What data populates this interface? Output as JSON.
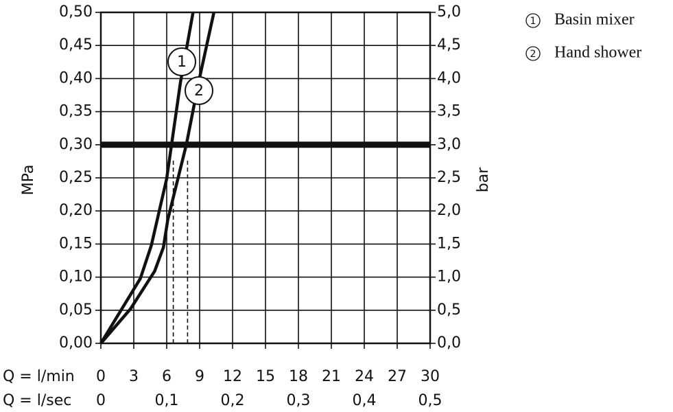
{
  "chart_data": {
    "type": "line",
    "ylabel": "MPa",
    "y2label": "bar",
    "xlabel": "Q = l/min",
    "x2label": "Q = l/sec",
    "xlim": [
      0,
      30
    ],
    "xticks": [
      0,
      3,
      6,
      9,
      12,
      15,
      18,
      21,
      24,
      27,
      30
    ],
    "x2lim": [
      0,
      0.5
    ],
    "x2ticks": [
      0,
      {
        "value": 0.1,
        "label": "0,1"
      },
      {
        "value": 0.2,
        "label": "0,2"
      },
      {
        "value": 0.3,
        "label": "0,3"
      },
      {
        "value": 0.4,
        "label": "0,4"
      },
      {
        "value": 0.5,
        "label": "0,5"
      }
    ],
    "ylim": [
      0,
      0.5
    ],
    "yticks": [
      {
        "value": 0,
        "label": "0,00"
      },
      {
        "value": 0.05,
        "label": "0,05"
      },
      {
        "value": 0.1,
        "label": "0,10"
      },
      {
        "value": 0.15,
        "label": "0,15"
      },
      {
        "value": 0.2,
        "label": "0,20"
      },
      {
        "value": 0.25,
        "label": "0,25"
      },
      {
        "value": 0.3,
        "label": "0,30"
      },
      {
        "value": 0.35,
        "label": "0,35"
      },
      {
        "value": 0.4,
        "label": "0,40"
      },
      {
        "value": 0.45,
        "label": "0,45"
      },
      {
        "value": 0.5,
        "label": "0,50"
      }
    ],
    "y2lim": [
      0,
      5
    ],
    "y2ticks": [
      {
        "value": 0,
        "label": "0,0"
      },
      {
        "value": 0.5,
        "label": "0,5"
      },
      {
        "value": 1,
        "label": "1,0"
      },
      {
        "value": 1.5,
        "label": "1,5"
      },
      {
        "value": 2,
        "label": "2,0"
      },
      {
        "value": 2.5,
        "label": "2,5"
      },
      {
        "value": 3,
        "label": "3,0"
      },
      {
        "value": 3.5,
        "label": "3,5"
      },
      {
        "value": 4,
        "label": "4,0"
      },
      {
        "value": 4.5,
        "label": "4,5"
      },
      {
        "value": 5,
        "label": "5,0"
      }
    ],
    "grid": true,
    "reference_line": 0.3,
    "dashed_x": [
      6.6,
      7.9
    ],
    "series": [
      {
        "name": "Basin mixer",
        "label": "1",
        "color": "#111111",
        "x": [
          0,
          3.6,
          4.6,
          6,
          7.25,
          8.4
        ],
        "values": [
          0,
          0.098,
          0.148,
          0.249,
          0.394,
          0.5
        ]
      },
      {
        "name": "Hand shower",
        "label": "2",
        "color": "#111111",
        "x": [
          0,
          2.7,
          4.9,
          5.7,
          6.1,
          7.8,
          8.9,
          10.3
        ],
        "values": [
          0,
          0.052,
          0.109,
          0.145,
          0.187,
          0.301,
          0.394,
          0.5
        ]
      }
    ]
  }
}
